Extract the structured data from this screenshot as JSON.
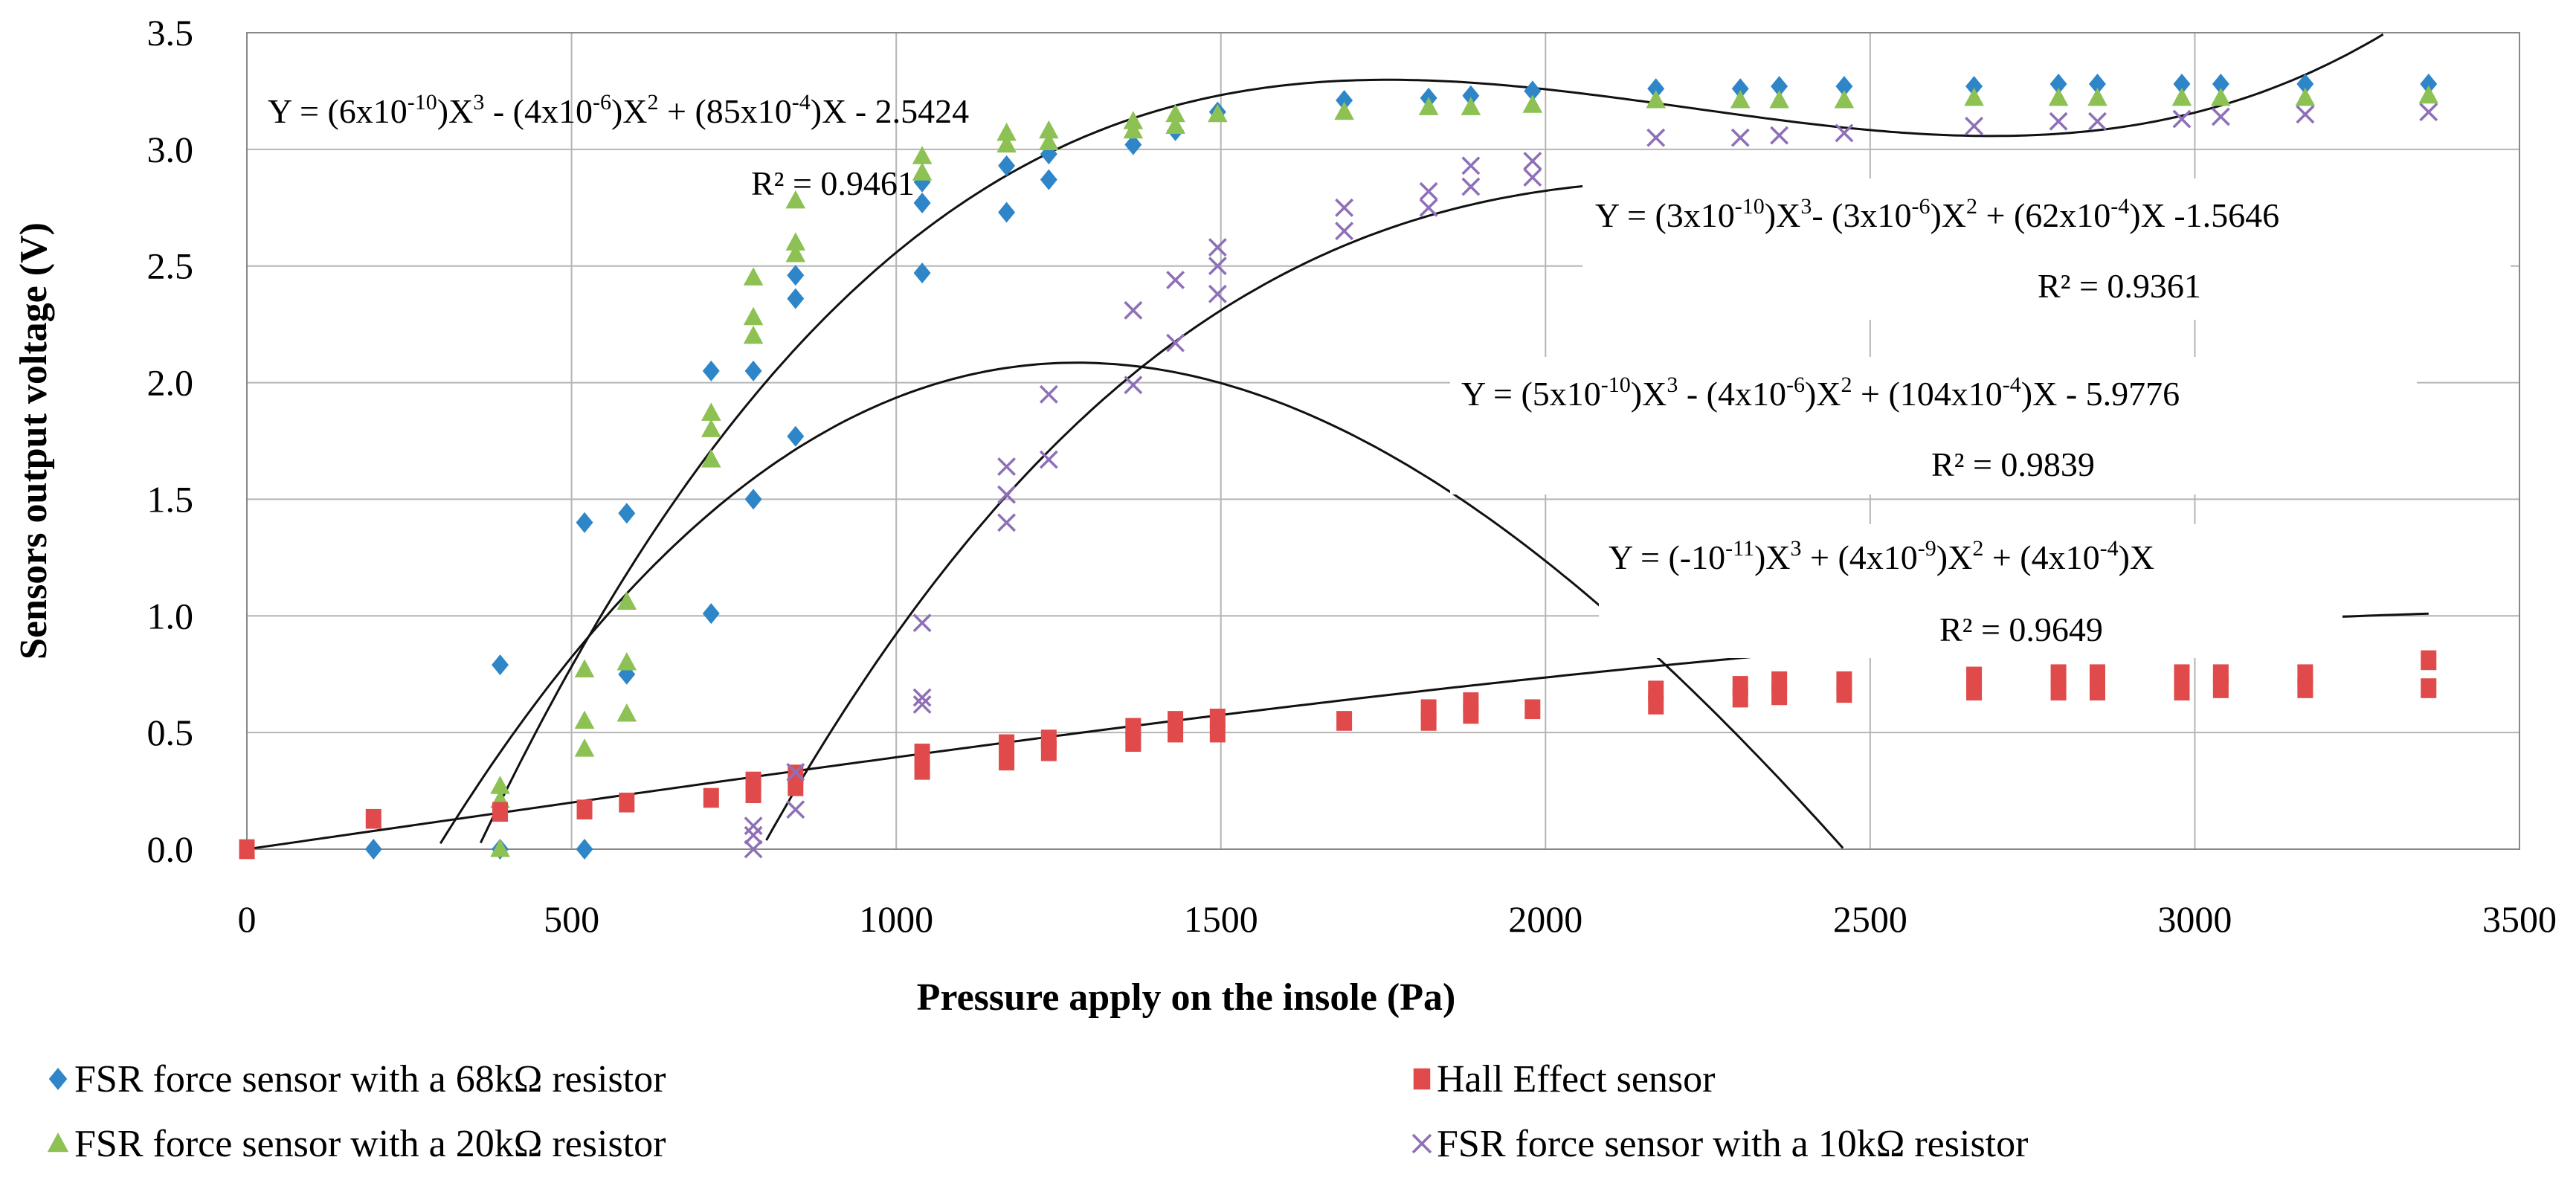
{
  "chart_data": {
    "type": "scatter",
    "title": "",
    "xlabel": "Pressure apply on the insole (Pa)",
    "ylabel": "Sensors output voltage (V)",
    "xlim": [
      0,
      3500
    ],
    "ylim": [
      0,
      3.5
    ],
    "xticks": [
      0,
      500,
      1000,
      1500,
      2000,
      2500,
      3000,
      3500
    ],
    "yticks": [
      0.0,
      0.5,
      1.0,
      1.5,
      2.0,
      2.5,
      3.0,
      3.5
    ],
    "xtick_labels": [
      "0",
      "500",
      "1000",
      "1500",
      "2000",
      "2500",
      "3000",
      "3500"
    ],
    "ytick_labels": [
      "0.0",
      "0.5",
      "1.0",
      "1.5",
      "2.0",
      "2.5",
      "3.0",
      "3.5"
    ],
    "grid": true,
    "series": [
      {
        "name": "FSR force sensor with a 68kΩ resistor",
        "marker": "diamond",
        "color": "#2E86C8",
        "points": [
          [
            195,
            0
          ],
          [
            390,
            0.79
          ],
          [
            390,
            0.0
          ],
          [
            520,
            1.4
          ],
          [
            520,
            0.0
          ],
          [
            585,
            1.44
          ],
          [
            585,
            0.75
          ],
          [
            715,
            2.05
          ],
          [
            715,
            1.01
          ],
          [
            780,
            2.05
          ],
          [
            780,
            1.5
          ],
          [
            845,
            2.46
          ],
          [
            845,
            2.36
          ],
          [
            845,
            1.77
          ],
          [
            1040,
            2.86
          ],
          [
            1040,
            2.77
          ],
          [
            1040,
            2.47
          ],
          [
            1170,
            2.93
          ],
          [
            1170,
            2.73
          ],
          [
            1235,
            2.98
          ],
          [
            1235,
            2.87
          ],
          [
            1365,
            3.02
          ],
          [
            1430,
            3.08
          ],
          [
            1495,
            3.16
          ],
          [
            1690,
            3.21
          ],
          [
            1820,
            3.22
          ],
          [
            1885,
            3.23
          ],
          [
            1980,
            3.25
          ],
          [
            2170,
            3.26
          ],
          [
            2300,
            3.26
          ],
          [
            2360,
            3.27
          ],
          [
            2460,
            3.27
          ],
          [
            2660,
            3.27
          ],
          [
            2790,
            3.28
          ],
          [
            2850,
            3.28
          ],
          [
            2980,
            3.28
          ],
          [
            3040,
            3.28
          ],
          [
            3170,
            3.28
          ],
          [
            3360,
            3.28
          ]
        ]
      },
      {
        "name": "FSR force sensor with a 20kΩ resistor",
        "marker": "triangle",
        "color": "#8DC153",
        "points": [
          [
            390,
            0.27
          ],
          [
            390,
            0.21
          ],
          [
            390,
            0.0
          ],
          [
            520,
            0.77
          ],
          [
            520,
            0.55
          ],
          [
            520,
            0.43
          ],
          [
            585,
            1.06
          ],
          [
            585,
            0.8
          ],
          [
            585,
            0.58
          ],
          [
            715,
            1.87
          ],
          [
            715,
            1.8
          ],
          [
            715,
            1.67
          ],
          [
            780,
            2.45
          ],
          [
            780,
            2.28
          ],
          [
            780,
            2.2
          ],
          [
            845,
            2.78
          ],
          [
            845,
            2.6
          ],
          [
            845,
            2.55
          ],
          [
            1040,
            2.97
          ],
          [
            1040,
            2.9
          ],
          [
            1170,
            3.07
          ],
          [
            1170,
            3.02
          ],
          [
            1235,
            3.08
          ],
          [
            1235,
            3.03
          ],
          [
            1365,
            3.12
          ],
          [
            1365,
            3.08
          ],
          [
            1430,
            3.15
          ],
          [
            1430,
            3.1
          ],
          [
            1495,
            3.15
          ],
          [
            1690,
            3.16
          ],
          [
            1820,
            3.18
          ],
          [
            1885,
            3.18
          ],
          [
            1980,
            3.19
          ],
          [
            2170,
            3.21
          ],
          [
            2300,
            3.21
          ],
          [
            2360,
            3.21
          ],
          [
            2460,
            3.21
          ],
          [
            2660,
            3.22
          ],
          [
            2790,
            3.22
          ],
          [
            2850,
            3.22
          ],
          [
            2980,
            3.22
          ],
          [
            3040,
            3.22
          ],
          [
            3170,
            3.22
          ],
          [
            3360,
            3.23
          ]
        ]
      },
      {
        "name": "Hall Effect sensor",
        "marker": "square",
        "color": "#E04A4A",
        "points": [
          [
            0,
            0.0
          ],
          [
            195,
            0.13
          ],
          [
            390,
            0.16
          ],
          [
            520,
            0.17
          ],
          [
            585,
            0.2
          ],
          [
            715,
            0.22
          ],
          [
            780,
            0.24
          ],
          [
            780,
            0.29
          ],
          [
            845,
            0.27
          ],
          [
            845,
            0.32
          ],
          [
            1040,
            0.34
          ],
          [
            1040,
            0.41
          ],
          [
            1170,
            0.38
          ],
          [
            1170,
            0.45
          ],
          [
            1235,
            0.42
          ],
          [
            1235,
            0.47
          ],
          [
            1365,
            0.46
          ],
          [
            1365,
            0.52
          ],
          [
            1430,
            0.5
          ],
          [
            1430,
            0.55
          ],
          [
            1495,
            0.5
          ],
          [
            1495,
            0.56
          ],
          [
            1690,
            0.55
          ],
          [
            1820,
            0.55
          ],
          [
            1820,
            0.6
          ],
          [
            1885,
            0.58
          ],
          [
            1885,
            0.63
          ],
          [
            1980,
            0.6
          ],
          [
            2170,
            0.62
          ],
          [
            2170,
            0.68
          ],
          [
            2300,
            0.65
          ],
          [
            2300,
            0.7
          ],
          [
            2360,
            0.66
          ],
          [
            2360,
            0.72
          ],
          [
            2460,
            0.67
          ],
          [
            2460,
            0.72
          ],
          [
            2660,
            0.68
          ],
          [
            2660,
            0.74
          ],
          [
            2790,
            0.68
          ],
          [
            2790,
            0.75
          ],
          [
            2850,
            0.68
          ],
          [
            2850,
            0.75
          ],
          [
            2980,
            0.68
          ],
          [
            2980,
            0.75
          ],
          [
            3040,
            0.69
          ],
          [
            3040,
            0.75
          ],
          [
            3170,
            0.69
          ],
          [
            3170,
            0.75
          ],
          [
            3360,
            0.69
          ],
          [
            3360,
            0.81
          ]
        ]
      },
      {
        "name": "FSR force sensor with a 10kΩ resistor",
        "marker": "x",
        "color": "#8E6FB8",
        "points": [
          [
            780,
            0.0
          ],
          [
            780,
            0.06
          ],
          [
            780,
            0.1
          ],
          [
            845,
            0.17
          ],
          [
            845,
            0.33
          ],
          [
            1040,
            0.62
          ],
          [
            1040,
            0.65
          ],
          [
            1040,
            0.97
          ],
          [
            1170,
            1.4
          ],
          [
            1170,
            1.52
          ],
          [
            1170,
            1.64
          ],
          [
            1235,
            1.67
          ],
          [
            1235,
            1.95
          ],
          [
            1365,
            1.99
          ],
          [
            1365,
            2.31
          ],
          [
            1430,
            2.17
          ],
          [
            1430,
            2.44
          ],
          [
            1495,
            2.38
          ],
          [
            1495,
            2.5
          ],
          [
            1495,
            2.58
          ],
          [
            1690,
            2.65
          ],
          [
            1690,
            2.75
          ],
          [
            1820,
            2.75
          ],
          [
            1820,
            2.82
          ],
          [
            1885,
            2.84
          ],
          [
            1885,
            2.93
          ],
          [
            1980,
            2.88
          ],
          [
            1980,
            2.95
          ],
          [
            2170,
            3.05
          ],
          [
            2300,
            3.05
          ],
          [
            2360,
            3.06
          ],
          [
            2460,
            3.07
          ],
          [
            2660,
            3.1
          ],
          [
            2790,
            3.12
          ],
          [
            2850,
            3.12
          ],
          [
            2980,
            3.13
          ],
          [
            3040,
            3.14
          ],
          [
            3170,
            3.15
          ],
          [
            3360,
            3.16
          ]
        ]
      }
    ],
    "trendlines": [
      {
        "series": "FSR force sensor with a 68kΩ resistor",
        "coeffs": [
          6e-10,
          -4e-06,
          0.0085,
          -2.5424
        ],
        "x_range": [
          320,
          3360
        ]
      },
      {
        "series": "FSR force sensor with a 20kΩ resistor",
        "coeffs": [
          3e-10,
          -3e-06,
          0.0062,
          -1.5646
        ],
        "x_range": [
          278,
          3360
        ]
      },
      {
        "series": "FSR force sensor with a 10kΩ resistor",
        "coeffs": [
          5e-10,
          -4e-06,
          0.0104,
          -5.9776
        ],
        "x_range": [
          770,
          3420
        ]
      },
      {
        "series": "Hall Effect sensor",
        "coeffs": [
          -1e-11,
          4e-09,
          0.0004,
          0
        ],
        "x_range": [
          0,
          3360
        ]
      }
    ],
    "annotations": [
      {
        "id": "eq1",
        "parts": [
          "Y = (6x10",
          "-10",
          ")X",
          "3",
          " - (4x10",
          "-6",
          ")X",
          "2",
          " + (85x10",
          "-4",
          ")X - 2.5424"
        ],
        "r2": "R² = 0.9461"
      },
      {
        "id": "eq2",
        "parts": [
          "Y = (3x10",
          "-10",
          ")X",
          "3",
          "- (3x10",
          "-6",
          ")X",
          "2",
          " + (62x10",
          "-4",
          ")X -1.5646"
        ],
        "r2": "R² = 0.9361"
      },
      {
        "id": "eq3",
        "parts": [
          "Y = (5x10",
          "-10",
          ")X",
          "3",
          " - (4x10",
          "-6",
          ")X",
          "2",
          " + (104x10",
          "-4",
          ")X - 5.9776"
        ],
        "r2": "R² = 0.9839"
      },
      {
        "id": "eq4",
        "parts": [
          "Y = (-10",
          "-11",
          ")X",
          "3",
          " + (4x10",
          "-9",
          ")X",
          "2",
          " + (4x10",
          "-4",
          ")X"
        ],
        "r2": "R² = 0.9649"
      }
    ],
    "legend": {
      "placement": "bottom",
      "columns": 2
    }
  }
}
